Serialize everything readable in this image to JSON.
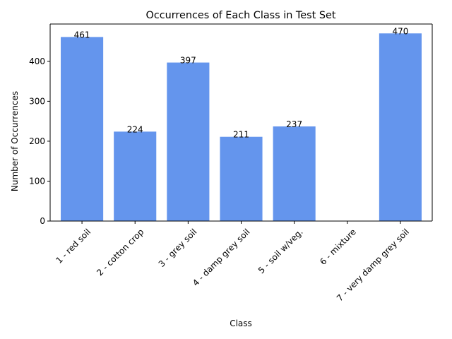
{
  "chart_data": {
    "type": "bar",
    "title": "Occurrences of Each Class in Test Set",
    "xlabel": "Class",
    "ylabel": "Number of Occurrences",
    "categories": [
      "1 - red soil",
      "2 - cotton crop",
      "3 - grey soil",
      "4 - damp grey soil",
      "5 - soil w/veg.",
      "6 - mixture",
      "7 - very damp grey soil"
    ],
    "values": [
      461,
      224,
      397,
      211,
      237,
      0,
      470
    ],
    "data_labels": [
      "461",
      "224",
      "397",
      "211",
      "237",
      "",
      "470"
    ],
    "yticks": [
      0,
      100,
      200,
      300,
      400
    ],
    "ylim": [
      0,
      493.5
    ],
    "bar_color": "#6495ED",
    "grid": false,
    "legend": "none"
  }
}
